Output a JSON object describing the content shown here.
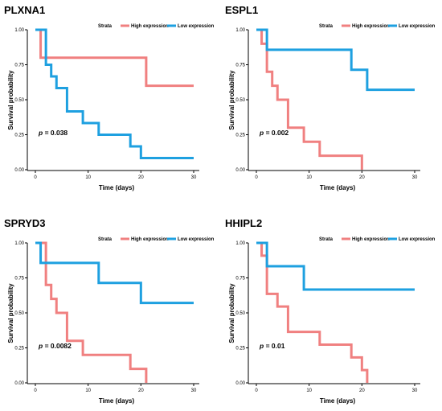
{
  "chart_data": [
    {
      "type": "line",
      "title": "PLXNA1",
      "xlabel": "Time (days)",
      "ylabel": "Survival probability",
      "xlim": [
        0,
        30
      ],
      "ylim": [
        0,
        1
      ],
      "xticks": [
        "0",
        "10",
        "20",
        "30"
      ],
      "yticks": [
        "0.00",
        "0.25",
        "0.50",
        "0.75",
        "1.00"
      ],
      "legend": {
        "title": "Strata",
        "placement": "top"
      },
      "pvalue": {
        "prefix": "p",
        "text": " = 0.038"
      },
      "series": [
        {
          "name": "High expression",
          "color": "#f08080",
          "x": [
            0,
            1,
            21,
            30
          ],
          "y": [
            1.0,
            0.8,
            0.6,
            0.6
          ]
        },
        {
          "name": "Low expression",
          "color": "#1ea0e0",
          "x": [
            0,
            2,
            3,
            4,
            6,
            9,
            12,
            18,
            20,
            30
          ],
          "y": [
            1.0,
            0.75,
            0.667,
            0.583,
            0.417,
            0.333,
            0.25,
            0.167,
            0.083,
            0.083
          ]
        }
      ]
    },
    {
      "type": "line",
      "title": "ESPL1",
      "xlabel": "Time (days)",
      "ylabel": "Survival probability",
      "xlim": [
        0,
        30
      ],
      "ylim": [
        0,
        1
      ],
      "xticks": [
        "0",
        "10",
        "20",
        "30"
      ],
      "yticks": [
        "0.00",
        "0.25",
        "0.50",
        "0.75",
        "1.00"
      ],
      "legend": {
        "title": "Strata",
        "placement": "top"
      },
      "pvalue": {
        "prefix": "p",
        "text": " = 0.002"
      },
      "series": [
        {
          "name": "High expression",
          "color": "#f08080",
          "x": [
            0,
            1,
            2,
            3,
            4,
            6,
            9,
            12,
            20,
            20
          ],
          "y": [
            1.0,
            0.9,
            0.7,
            0.6,
            0.5,
            0.3,
            0.2,
            0.1,
            0.1,
            0.0
          ]
        },
        {
          "name": "Low expression",
          "color": "#1ea0e0",
          "x": [
            0,
            2,
            18,
            21,
            30
          ],
          "y": [
            1.0,
            0.857,
            0.714,
            0.571,
            0.571
          ]
        }
      ]
    },
    {
      "type": "line",
      "title": "SPRYD3",
      "xlabel": "Time (days)",
      "ylabel": "Survival probability",
      "xlim": [
        0,
        30
      ],
      "ylim": [
        0,
        1
      ],
      "xticks": [
        "0",
        "10",
        "20",
        "30"
      ],
      "yticks": [
        "0.00",
        "0.25",
        "0.50",
        "0.75",
        "1.00"
      ],
      "legend": {
        "title": "Strata",
        "placement": "top"
      },
      "pvalue": {
        "prefix": "p",
        "text": " = 0.0082"
      },
      "series": [
        {
          "name": "High expression",
          "color": "#f08080",
          "x": [
            0,
            2,
            3,
            4,
            6,
            9,
            18,
            21,
            21
          ],
          "y": [
            1.0,
            0.7,
            0.6,
            0.5,
            0.3,
            0.2,
            0.1,
            0.1,
            0.0
          ]
        },
        {
          "name": "Low expression",
          "color": "#1ea0e0",
          "x": [
            0,
            1,
            12,
            20,
            30
          ],
          "y": [
            1.0,
            0.857,
            0.714,
            0.571,
            0.571
          ]
        }
      ]
    },
    {
      "type": "line",
      "title": "HHIPL2",
      "xlabel": "Time (days)",
      "ylabel": "Survival probability",
      "xlim": [
        0,
        30
      ],
      "ylim": [
        0,
        1
      ],
      "xticks": [
        "0",
        "10",
        "20",
        "30"
      ],
      "yticks": [
        "0.00",
        "0.25",
        "0.50",
        "0.75",
        "1.00"
      ],
      "legend": {
        "title": "Strata",
        "placement": "top"
      },
      "pvalue": {
        "prefix": "p",
        "text": " = 0.01"
      },
      "series": [
        {
          "name": "High expression",
          "color": "#f08080",
          "x": [
            0,
            1,
            2,
            4,
            6,
            12,
            18,
            20,
            21,
            21
          ],
          "y": [
            1.0,
            0.909,
            0.636,
            0.545,
            0.364,
            0.273,
            0.182,
            0.091,
            0.091,
            0.0
          ]
        },
        {
          "name": "Low expression",
          "color": "#1ea0e0",
          "x": [
            0,
            2,
            9,
            30
          ],
          "y": [
            1.0,
            0.833,
            0.667,
            0.667
          ]
        }
      ]
    }
  ]
}
